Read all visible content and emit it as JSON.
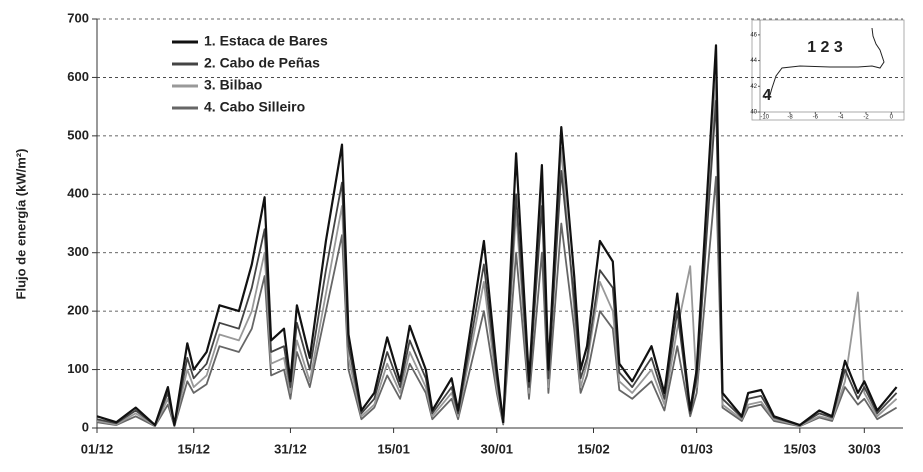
{
  "chart_data": {
    "type": "line",
    "ylabel": "Flujo de energía (kW/m²)",
    "x": [
      0,
      3,
      6,
      9,
      11,
      12,
      14,
      15,
      17,
      19,
      22,
      24,
      26,
      27,
      29,
      30,
      31,
      33,
      35.5,
      38,
      39,
      41,
      43,
      45,
      47,
      48.5,
      51,
      52,
      55,
      56,
      60,
      62,
      63,
      65,
      67,
      69,
      70,
      72,
      74,
      75,
      76,
      78,
      80,
      81,
      83,
      86,
      88,
      90,
      92,
      93,
      96,
      97,
      100,
      101,
      103,
      105,
      109,
      112,
      114,
      116,
      118,
      119,
      121,
      124
    ],
    "xlim": [
      0,
      125
    ],
    "xticks": [
      {
        "value": 0,
        "label": "01/12"
      },
      {
        "value": 15,
        "label": "15/12"
      },
      {
        "value": 30,
        "label": "31/12"
      },
      {
        "value": 46,
        "label": "15/01"
      },
      {
        "value": 62,
        "label": "30/01"
      },
      {
        "value": 77,
        "label": "15/02"
      },
      {
        "value": 93,
        "label": "01/03"
      },
      {
        "value": 109,
        "label": "15/03"
      },
      {
        "value": 119,
        "label": "30/03"
      }
    ],
    "ylim": [
      0,
      700
    ],
    "yticks": [
      0,
      100,
      200,
      300,
      400,
      500,
      600,
      700
    ],
    "grid": true,
    "legend": "top-left",
    "series": [
      {
        "name": "1. Estaca de Bares",
        "color": "#111111",
        "values": [
          20,
          10,
          35,
          5,
          70,
          5,
          145,
          100,
          130,
          210,
          200,
          280,
          395,
          150,
          170,
          80,
          210,
          120,
          320,
          485,
          160,
          30,
          60,
          155,
          80,
          175,
          100,
          30,
          85,
          30,
          320,
          100,
          10,
          470,
          80,
          450,
          100,
          515,
          260,
          100,
          140,
          320,
          285,
          110,
          80,
          140,
          60,
          230,
          30,
          100,
          655,
          60,
          20,
          60,
          65,
          20,
          5,
          30,
          20,
          115,
          60,
          80,
          30,
          70
        ]
      },
      {
        "name": "2. Cabo de Peñas",
        "color": "#444444",
        "values": [
          15,
          8,
          30,
          5,
          60,
          5,
          120,
          85,
          110,
          180,
          170,
          240,
          340,
          130,
          140,
          70,
          180,
          100,
          270,
          420,
          140,
          25,
          50,
          130,
          70,
          150,
          85,
          25,
          70,
          25,
          280,
          85,
          10,
          400,
          70,
          380,
          85,
          440,
          220,
          85,
          120,
          270,
          240,
          95,
          70,
          120,
          50,
          200,
          25,
          85,
          560,
          50,
          18,
          50,
          55,
          18,
          5,
          25,
          18,
          100,
          50,
          70,
          25,
          60
        ]
      },
      {
        "name": "3. Bilbao",
        "color": "#999999",
        "values": [
          12,
          6,
          25,
          4,
          50,
          4,
          100,
          70,
          90,
          160,
          150,
          200,
          300,
          110,
          120,
          60,
          150,
          80,
          230,
          380,
          120,
          20,
          40,
          110,
          60,
          130,
          70,
          20,
          60,
          20,
          250,
          70,
          8,
          370,
          60,
          420,
          70,
          480,
          200,
          70,
          110,
          250,
          200,
          80,
          60,
          100,
          40,
          170,
          277,
          70,
          600,
          40,
          15,
          40,
          45,
          15,
          4,
          20,
          15,
          80,
          232,
          60,
          20,
          50
        ]
      },
      {
        "name": "4. Cabo Silleiro",
        "color": "#666666",
        "values": [
          10,
          5,
          20,
          3,
          40,
          3,
          80,
          60,
          75,
          140,
          130,
          170,
          260,
          90,
          100,
          50,
          130,
          70,
          200,
          330,
          100,
          15,
          35,
          90,
          50,
          110,
          60,
          15,
          50,
          15,
          200,
          60,
          6,
          300,
          50,
          300,
          60,
          350,
          170,
          60,
          90,
          200,
          170,
          65,
          50,
          80,
          30,
          140,
          20,
          60,
          430,
          35,
          12,
          35,
          40,
          12,
          3,
          18,
          12,
          70,
          40,
          50,
          15,
          35
        ]
      }
    ],
    "inset": {
      "labels": [
        "1 2 3",
        "4"
      ],
      "xlim": [
        -11,
        1
      ],
      "ylim": [
        40,
        47
      ],
      "xticks": [
        -10,
        -8,
        -6,
        -4,
        -2,
        0
      ],
      "yticks": [
        40,
        42,
        44,
        46
      ]
    }
  }
}
